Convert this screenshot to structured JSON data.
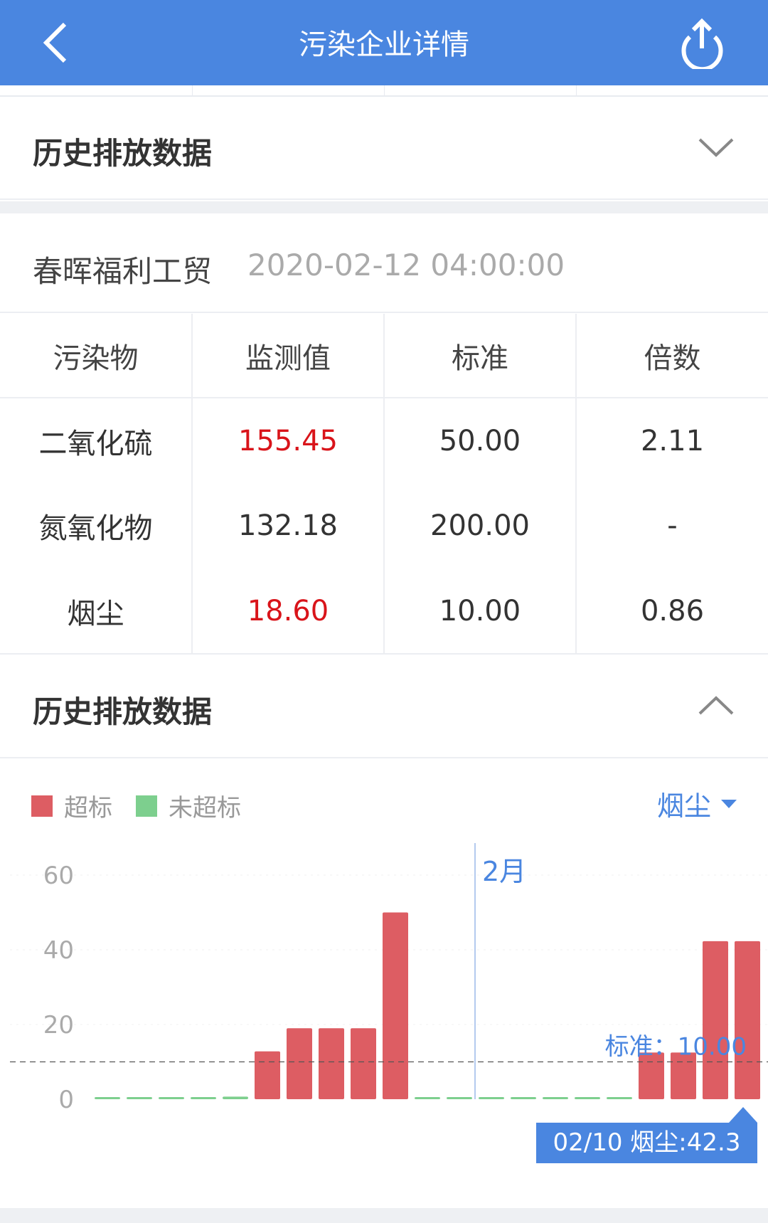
{
  "header": {
    "title": "污染企业详情",
    "back_icon": "chevron-left-icon",
    "share_icon": "share-upload-icon"
  },
  "section1": {
    "title": "历史排放数据",
    "icon": "chevron-down-icon"
  },
  "company": {
    "name": "春晖福利工贸",
    "datetime": "2020-02-12 04:00:00"
  },
  "table": {
    "headers": [
      "污染物",
      "监测值",
      "标准",
      "倍数"
    ],
    "rows": [
      {
        "pollutant": "二氧化硫",
        "value": "155.45",
        "standard": "50.00",
        "ratio": "2.11",
        "exceeded": true
      },
      {
        "pollutant": "氮氧化物",
        "value": "132.18",
        "standard": "200.00",
        "ratio": "-",
        "exceeded": false
      },
      {
        "pollutant": "烟尘",
        "value": "18.60",
        "standard": "10.00",
        "ratio": "0.86",
        "exceeded": true
      }
    ]
  },
  "section2": {
    "title": "历史排放数据",
    "icon": "chevron-up-icon"
  },
  "legend": {
    "over": "超标",
    "under": "未超标",
    "over_color": "#dd5d63",
    "under_color": "#7dcf8e"
  },
  "selector": {
    "value": "烟尘"
  },
  "chart_data": {
    "type": "bar",
    "yticks": [
      "0",
      "20",
      "40",
      "60"
    ],
    "ylim": [
      0,
      60
    ],
    "values": [
      0,
      0,
      0,
      0,
      0.7,
      12.8,
      19,
      19,
      19,
      50,
      0,
      0,
      0,
      0,
      0,
      0,
      0,
      12.5,
      12.5,
      42.3,
      42.3
    ],
    "threshold": 10,
    "threshold_label": "标准：10.00",
    "month_marker": "2月",
    "month_marker_index": 12,
    "tooltip": "02/10 烟尘:42.3"
  }
}
